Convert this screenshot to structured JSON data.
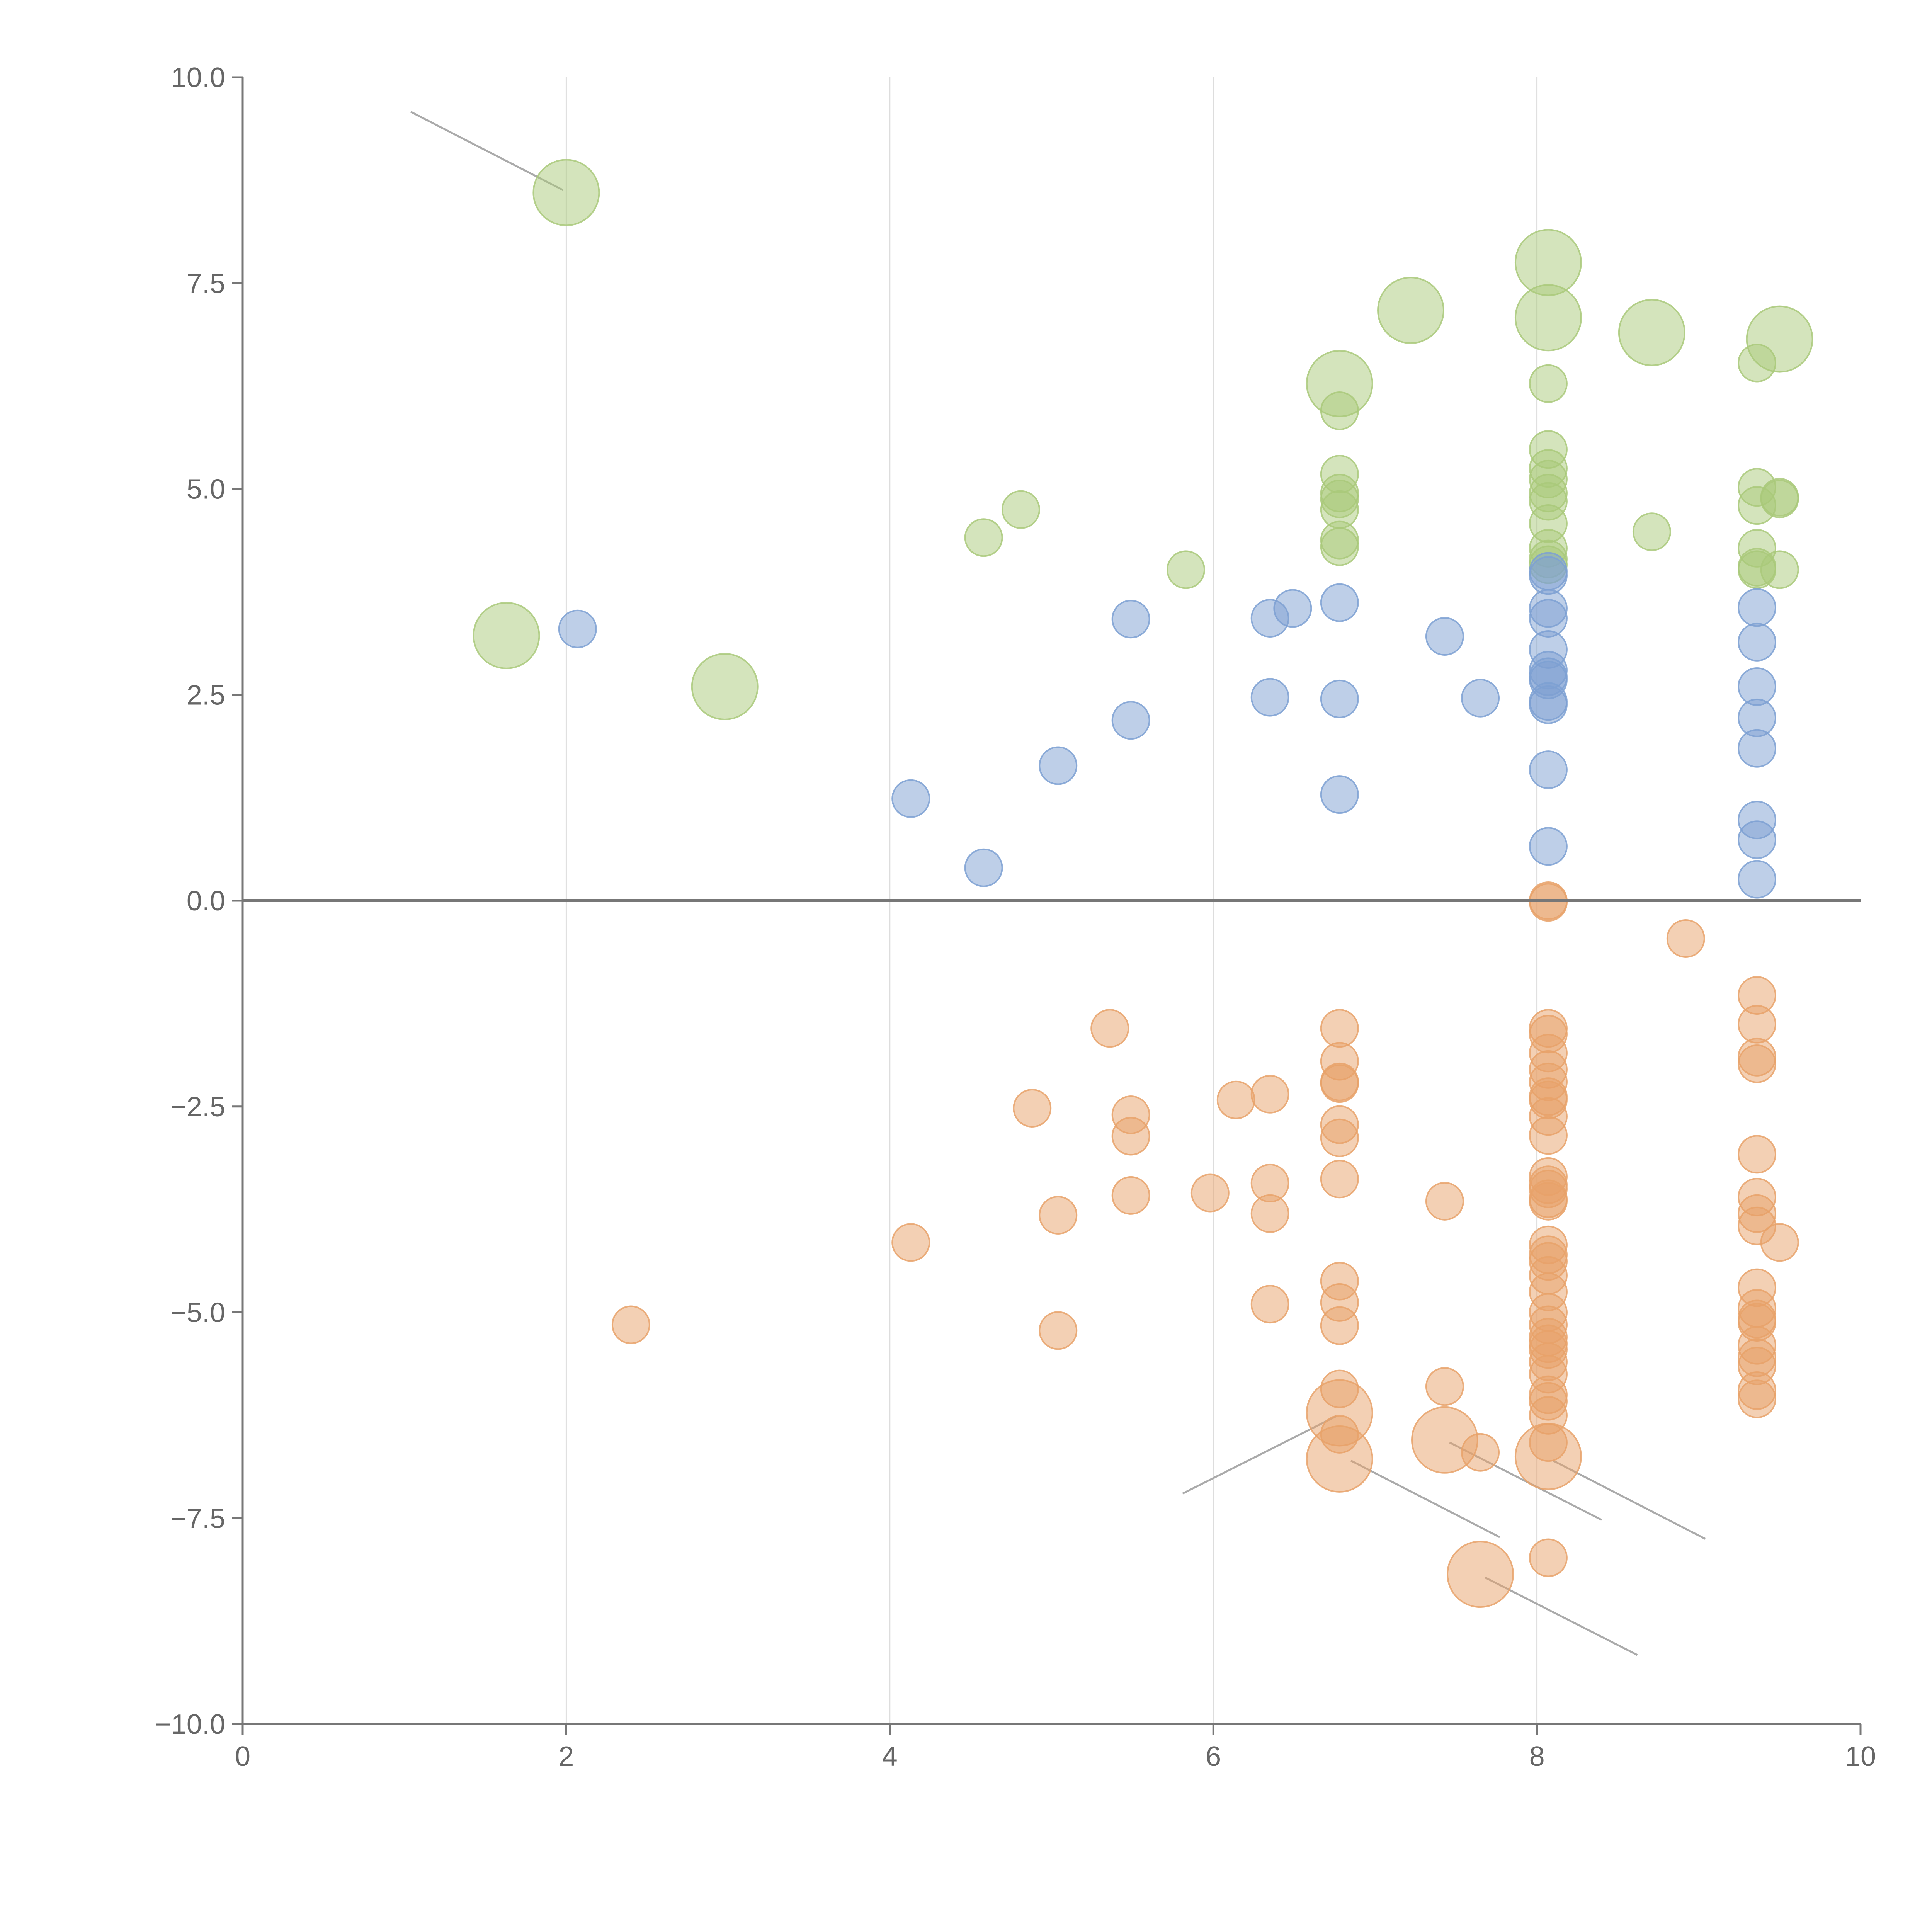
{
  "chart_data": {
    "type": "scatter",
    "title": "",
    "xlabel": "",
    "ylabel": "",
    "xlim": [
      0,
      10
    ],
    "ylim": [
      -10,
      10
    ],
    "x_ticks": [
      "0",
      "2",
      "4",
      "6",
      "8",
      "10"
    ],
    "x_tick_values": [
      0,
      2,
      4,
      6,
      8,
      10
    ],
    "y_ticks": [
      "10.0",
      "7.5",
      "5.0",
      "2.5",
      "0.0",
      "−2.5",
      "−5.0",
      "−7.5",
      "−10.0"
    ],
    "y_tick_values": [
      10,
      7.5,
      5,
      2.5,
      0,
      -2.5,
      -5,
      -7.5,
      -10
    ],
    "grid": {
      "x": true,
      "y": false
    },
    "zero_line": 0,
    "series": [
      {
        "name": "green",
        "color": "#a9c97a",
        "points": [
          [
            2.0,
            8.6,
            3
          ],
          [
            1.63,
            3.22,
            3
          ],
          [
            2.98,
            2.6,
            3
          ],
          [
            4.58,
            4.41,
            1
          ],
          [
            4.81,
            4.75,
            1
          ],
          [
            5.83,
            4.02,
            1
          ],
          [
            6.78,
            6.28,
            3
          ],
          [
            6.78,
            5.95,
            1
          ],
          [
            6.78,
            5.18,
            1
          ],
          [
            6.78,
            4.95,
            1
          ],
          [
            6.78,
            4.88,
            1
          ],
          [
            6.78,
            4.75,
            1
          ],
          [
            6.78,
            4.38,
            1
          ],
          [
            6.78,
            4.3,
            1
          ],
          [
            7.22,
            7.17,
            3
          ],
          [
            8.07,
            7.75,
            3
          ],
          [
            8.07,
            7.08,
            3
          ],
          [
            8.07,
            6.28,
            1
          ],
          [
            8.07,
            5.48,
            1
          ],
          [
            8.07,
            5.25,
            1
          ],
          [
            8.07,
            5.12,
            1
          ],
          [
            8.07,
            4.95,
            1
          ],
          [
            8.07,
            4.85,
            1
          ],
          [
            8.07,
            4.58,
            1
          ],
          [
            8.07,
            4.28,
            1
          ],
          [
            8.07,
            4.15,
            1
          ],
          [
            8.07,
            4.08,
            1
          ],
          [
            8.71,
            6.9,
            3
          ],
          [
            8.71,
            4.48,
            1
          ],
          [
            9.36,
            6.53,
            1
          ],
          [
            9.36,
            5.02,
            1
          ],
          [
            9.36,
            4.8,
            1
          ],
          [
            9.36,
            4.28,
            1
          ],
          [
            9.36,
            4.05,
            1
          ],
          [
            9.36,
            4.02,
            1
          ],
          [
            9.5,
            6.82,
            3
          ],
          [
            9.5,
            4.9,
            1
          ],
          [
            9.5,
            4.88,
            1
          ],
          [
            9.5,
            4.02,
            1
          ]
        ]
      },
      {
        "name": "blue",
        "color": "#7da0d2",
        "points": [
          [
            2.07,
            3.3,
            1
          ],
          [
            4.13,
            1.24,
            1
          ],
          [
            4.58,
            0.4,
            1
          ],
          [
            5.04,
            1.64,
            1
          ],
          [
            5.49,
            3.42,
            1
          ],
          [
            5.49,
            2.19,
            1
          ],
          [
            6.35,
            3.43,
            1
          ],
          [
            6.35,
            2.47,
            1
          ],
          [
            6.49,
            3.55,
            1
          ],
          [
            6.78,
            3.62,
            1
          ],
          [
            6.78,
            2.45,
            1
          ],
          [
            6.78,
            1.29,
            1
          ],
          [
            7.43,
            3.21,
            1
          ],
          [
            7.65,
            2.46,
            1
          ],
          [
            8.07,
            4.0,
            1
          ],
          [
            8.07,
            3.95,
            1
          ],
          [
            8.07,
            3.55,
            1
          ],
          [
            8.07,
            3.43,
            1
          ],
          [
            8.07,
            3.05,
            1
          ],
          [
            8.07,
            2.8,
            1
          ],
          [
            8.07,
            2.72,
            1
          ],
          [
            8.07,
            2.68,
            1
          ],
          [
            8.07,
            2.42,
            1
          ],
          [
            8.07,
            2.38,
            1
          ],
          [
            8.07,
            1.59,
            1
          ],
          [
            8.07,
            0.66,
            1
          ],
          [
            9.36,
            3.56,
            1
          ],
          [
            9.36,
            3.14,
            1
          ],
          [
            9.36,
            2.6,
            1
          ],
          [
            9.36,
            2.22,
            1
          ],
          [
            9.36,
            1.85,
            1
          ],
          [
            9.36,
            0.98,
            1
          ],
          [
            9.36,
            0.74,
            1
          ],
          [
            9.36,
            0.26,
            1
          ]
        ]
      },
      {
        "name": "orange",
        "color": "#e8a26a",
        "points": [
          [
            2.4,
            -5.15,
            1
          ],
          [
            4.13,
            -4.15,
            1
          ],
          [
            4.88,
            -2.52,
            1
          ],
          [
            5.04,
            -3.82,
            1
          ],
          [
            5.04,
            -5.22,
            1
          ],
          [
            5.36,
            -1.55,
            1
          ],
          [
            5.49,
            -2.6,
            1
          ],
          [
            5.49,
            -2.86,
            1
          ],
          [
            5.49,
            -3.58,
            1
          ],
          [
            5.98,
            -3.55,
            1
          ],
          [
            6.14,
            -2.42,
            1
          ],
          [
            6.35,
            -2.35,
            1
          ],
          [
            6.35,
            -3.43,
            1
          ],
          [
            6.35,
            -3.8,
            1
          ],
          [
            6.35,
            -4.9,
            1
          ],
          [
            6.78,
            -1.55,
            1
          ],
          [
            6.78,
            -1.95,
            1
          ],
          [
            6.78,
            -2.2,
            1
          ],
          [
            6.78,
            -2.22,
            1
          ],
          [
            6.78,
            -2.72,
            1
          ],
          [
            6.78,
            -2.88,
            1
          ],
          [
            6.78,
            -3.38,
            1
          ],
          [
            6.78,
            -4.62,
            1
          ],
          [
            6.78,
            -4.88,
            1
          ],
          [
            6.78,
            -5.16,
            1
          ],
          [
            6.78,
            -5.93,
            1
          ],
          [
            6.78,
            -6.22,
            3
          ],
          [
            6.78,
            -6.48,
            1
          ],
          [
            6.78,
            -6.78,
            3
          ],
          [
            7.43,
            -3.65,
            1
          ],
          [
            7.43,
            -5.9,
            1
          ],
          [
            7.43,
            -6.55,
            3
          ],
          [
            7.65,
            -6.7,
            1
          ],
          [
            7.65,
            -8.18,
            3
          ],
          [
            8.07,
            0.0,
            1
          ],
          [
            8.07,
            -0.02,
            1
          ],
          [
            8.07,
            -1.55,
            1
          ],
          [
            8.07,
            -1.62,
            1
          ],
          [
            8.07,
            -1.85,
            1
          ],
          [
            8.07,
            -2.05,
            1
          ],
          [
            8.07,
            -2.2,
            1
          ],
          [
            8.07,
            -2.38,
            1
          ],
          [
            8.07,
            -2.42,
            1
          ],
          [
            8.07,
            -2.62,
            1
          ],
          [
            8.07,
            -2.85,
            1
          ],
          [
            8.07,
            -3.35,
            1
          ],
          [
            8.07,
            -3.45,
            1
          ],
          [
            8.07,
            -3.5,
            1
          ],
          [
            8.07,
            -3.62,
            1
          ],
          [
            8.07,
            -3.65,
            1
          ],
          [
            8.07,
            -4.18,
            1
          ],
          [
            8.07,
            -4.3,
            1
          ],
          [
            8.07,
            -4.38,
            1
          ],
          [
            8.07,
            -4.55,
            1
          ],
          [
            8.07,
            -4.75,
            1
          ],
          [
            8.07,
            -5.0,
            1
          ],
          [
            8.07,
            -5.15,
            1
          ],
          [
            8.07,
            -5.3,
            1
          ],
          [
            8.07,
            -5.38,
            1
          ],
          [
            8.07,
            -5.45,
            1
          ],
          [
            8.07,
            -5.6,
            1
          ],
          [
            8.07,
            -5.75,
            1
          ],
          [
            8.07,
            -6.0,
            1
          ],
          [
            8.07,
            -6.08,
            1
          ],
          [
            8.07,
            -6.25,
            1
          ],
          [
            8.07,
            -6.58,
            1
          ],
          [
            8.07,
            -6.75,
            3
          ],
          [
            8.07,
            -7.98,
            1
          ],
          [
            8.92,
            -0.46,
            1
          ],
          [
            9.36,
            -1.15,
            1
          ],
          [
            9.36,
            -1.5,
            1
          ],
          [
            9.36,
            -1.9,
            1
          ],
          [
            9.36,
            -1.98,
            1
          ],
          [
            9.36,
            -3.08,
            1
          ],
          [
            9.36,
            -3.6,
            1
          ],
          [
            9.36,
            -3.8,
            1
          ],
          [
            9.36,
            -3.95,
            1
          ],
          [
            9.36,
            -4.7,
            1
          ],
          [
            9.36,
            -4.95,
            1
          ],
          [
            9.36,
            -5.08,
            1
          ],
          [
            9.36,
            -5.12,
            1
          ],
          [
            9.36,
            -5.4,
            1
          ],
          [
            9.36,
            -5.55,
            1
          ],
          [
            9.36,
            -5.65,
            1
          ],
          [
            9.36,
            -5.95,
            1
          ],
          [
            9.36,
            -6.05,
            1
          ],
          [
            9.5,
            -4.15,
            1
          ]
        ]
      }
    ],
    "annotation_lines": [
      [
        1.04,
        9.58,
        1.98,
        8.63
      ],
      [
        5.81,
        -7.2,
        6.76,
        -6.26
      ],
      [
        6.85,
        -6.8,
        7.77,
        -7.73
      ],
      [
        7.46,
        -6.58,
        8.4,
        -7.52
      ],
      [
        8.1,
        -6.8,
        9.04,
        -7.75
      ],
      [
        7.68,
        -8.22,
        8.62,
        -9.16
      ]
    ]
  }
}
